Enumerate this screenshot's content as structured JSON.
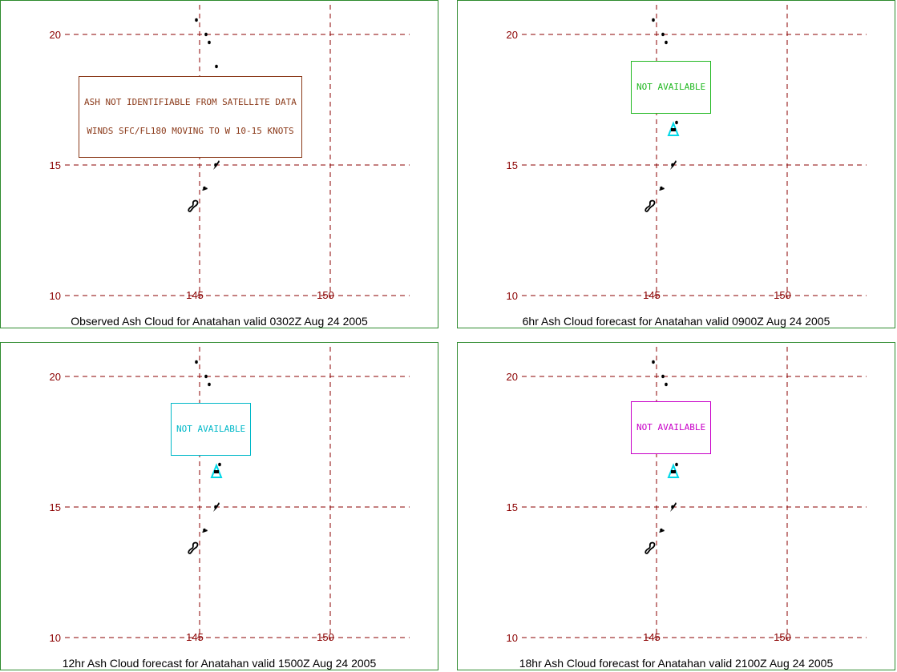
{
  "panels": [
    {
      "caption": "Observed Ash Cloud for Anatahan valid 0302Z Aug 24 2005",
      "notice": [
        "ASH NOT IDENTIFIABLE FROM SATELLITE DATA",
        "WINDS SFC/FL180 MOVING TO W 10-15 KNOTS"
      ],
      "notice_color": "#8b3a1a"
    },
    {
      "caption": "6hr Ash Cloud forecast for Anatahan valid 0900Z Aug 24 2005",
      "notice": [
        "NOT AVAILABLE"
      ],
      "notice_color": "#22b822"
    },
    {
      "caption": "12hr Ash Cloud forecast for Anatahan valid 1500Z Aug 24 2005",
      "notice": [
        "NOT AVAILABLE"
      ],
      "notice_color": "#00b8c8"
    },
    {
      "caption": "18hr Ash Cloud forecast for Anatahan valid 2100Z Aug 24 2005",
      "notice": [
        "NOT AVAILABLE"
      ],
      "notice_color": "#c800c8"
    }
  ],
  "map": {
    "lat_labels": [
      "20",
      "15",
      "10"
    ],
    "lon_labels": [
      "145",
      "150"
    ],
    "grid_color": "#8b0000",
    "volcano_color": "#00d8e8",
    "frame_color": "#2e8b2e"
  }
}
